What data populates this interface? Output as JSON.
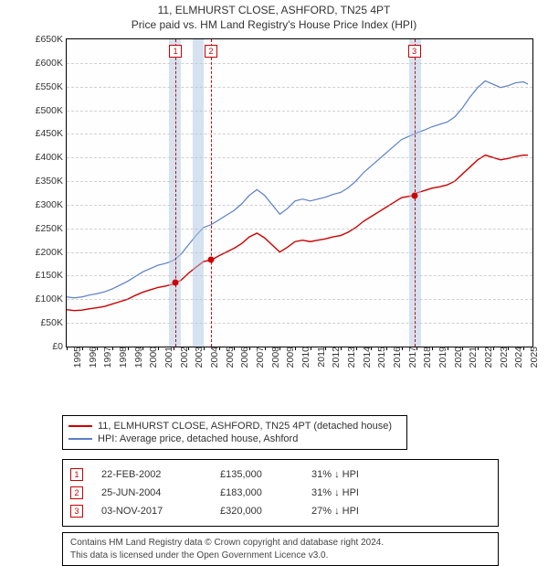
{
  "title": "11, ELMHURST CLOSE, ASHFORD, TN25 4PT",
  "subtitle": "Price paid vs. HM Land Registry's House Price Index (HPI)",
  "chart": {
    "type": "line",
    "background_color": "#fefefe",
    "grid_color": "#999999",
    "border_color": "#000000",
    "xlim": [
      1995,
      2025.6
    ],
    "ylim": [
      0,
      650000
    ],
    "ytick_step": 50000,
    "yticks": [
      "£0",
      "£50K",
      "£100K",
      "£150K",
      "£200K",
      "£250K",
      "£300K",
      "£350K",
      "£400K",
      "£450K",
      "£500K",
      "£550K",
      "£600K",
      "£650K"
    ],
    "xticks": [
      1995,
      1996,
      1997,
      1998,
      1999,
      2000,
      2001,
      2002,
      2003,
      2004,
      2005,
      2006,
      2007,
      2008,
      2009,
      2010,
      2011,
      2012,
      2013,
      2014,
      2015,
      2016,
      2017,
      2018,
      2019,
      2020,
      2021,
      2022,
      2023,
      2024,
      2025
    ],
    "shade_color": "rgba(173,198,224,0.5)",
    "shade_periods": [
      [
        2001.7,
        2002.5
      ],
      [
        2003.3,
        2004.0
      ],
      [
        2017.5,
        2018.3
      ]
    ],
    "dashed_color": "#cc0000",
    "series": [
      {
        "name": "11, ELMHURST CLOSE, ASHFORD, TN25 4PT (detached house)",
        "color": "#cc0000",
        "line_width": 1.4,
        "data": [
          [
            1995,
            78000
          ],
          [
            1995.5,
            76000
          ],
          [
            1996,
            77000
          ],
          [
            1996.5,
            80000
          ],
          [
            1997,
            82000
          ],
          [
            1997.5,
            85000
          ],
          [
            1998,
            90000
          ],
          [
            1998.5,
            95000
          ],
          [
            1999,
            100000
          ],
          [
            1999.5,
            108000
          ],
          [
            2000,
            115000
          ],
          [
            2000.5,
            120000
          ],
          [
            2001,
            125000
          ],
          [
            2001.5,
            128000
          ],
          [
            2002,
            132000
          ],
          [
            2002.15,
            135000
          ],
          [
            2002.5,
            140000
          ],
          [
            2003,
            155000
          ],
          [
            2003.5,
            168000
          ],
          [
            2004,
            180000
          ],
          [
            2004.5,
            183000
          ],
          [
            2005,
            192000
          ],
          [
            2005.5,
            200000
          ],
          [
            2006,
            208000
          ],
          [
            2006.5,
            218000
          ],
          [
            2007,
            232000
          ],
          [
            2007.5,
            240000
          ],
          [
            2008,
            230000
          ],
          [
            2008.5,
            215000
          ],
          [
            2009,
            200000
          ],
          [
            2009.5,
            210000
          ],
          [
            2010,
            222000
          ],
          [
            2010.5,
            225000
          ],
          [
            2011,
            222000
          ],
          [
            2011.5,
            225000
          ],
          [
            2012,
            228000
          ],
          [
            2012.5,
            232000
          ],
          [
            2013,
            235000
          ],
          [
            2013.5,
            242000
          ],
          [
            2014,
            252000
          ],
          [
            2014.5,
            265000
          ],
          [
            2015,
            275000
          ],
          [
            2015.5,
            285000
          ],
          [
            2016,
            295000
          ],
          [
            2016.5,
            305000
          ],
          [
            2017,
            315000
          ],
          [
            2017.85,
            320000
          ],
          [
            2018,
            325000
          ],
          [
            2018.5,
            330000
          ],
          [
            2019,
            335000
          ],
          [
            2019.5,
            338000
          ],
          [
            2020,
            342000
          ],
          [
            2020.5,
            350000
          ],
          [
            2021,
            365000
          ],
          [
            2021.5,
            380000
          ],
          [
            2022,
            395000
          ],
          [
            2022.5,
            405000
          ],
          [
            2023,
            400000
          ],
          [
            2023.5,
            395000
          ],
          [
            2024,
            398000
          ],
          [
            2024.5,
            402000
          ],
          [
            2025,
            405000
          ],
          [
            2025.3,
            405000
          ]
        ]
      },
      {
        "name": "HPI: Average price, detached house, Ashford",
        "color": "#5b7fc7",
        "line_width": 1.2,
        "data": [
          [
            1995,
            105000
          ],
          [
            1995.5,
            103000
          ],
          [
            1996,
            105000
          ],
          [
            1996.5,
            109000
          ],
          [
            1997,
            112000
          ],
          [
            1997.5,
            116000
          ],
          [
            1998,
            122000
          ],
          [
            1998.5,
            130000
          ],
          [
            1999,
            138000
          ],
          [
            1999.5,
            148000
          ],
          [
            2000,
            158000
          ],
          [
            2000.5,
            165000
          ],
          [
            2001,
            172000
          ],
          [
            2001.5,
            176000
          ],
          [
            2002,
            182000
          ],
          [
            2002.5,
            195000
          ],
          [
            2003,
            215000
          ],
          [
            2003.5,
            235000
          ],
          [
            2004,
            252000
          ],
          [
            2004.5,
            258000
          ],
          [
            2005,
            268000
          ],
          [
            2005.5,
            278000
          ],
          [
            2006,
            288000
          ],
          [
            2006.5,
            302000
          ],
          [
            2007,
            320000
          ],
          [
            2007.5,
            332000
          ],
          [
            2008,
            320000
          ],
          [
            2008.5,
            300000
          ],
          [
            2009,
            280000
          ],
          [
            2009.5,
            292000
          ],
          [
            2010,
            308000
          ],
          [
            2010.5,
            312000
          ],
          [
            2011,
            308000
          ],
          [
            2011.5,
            312000
          ],
          [
            2012,
            316000
          ],
          [
            2012.5,
            322000
          ],
          [
            2013,
            326000
          ],
          [
            2013.5,
            336000
          ],
          [
            2014,
            350000
          ],
          [
            2014.5,
            368000
          ],
          [
            2015,
            382000
          ],
          [
            2015.5,
            396000
          ],
          [
            2016,
            410000
          ],
          [
            2016.5,
            424000
          ],
          [
            2017,
            438000
          ],
          [
            2017.5,
            445000
          ],
          [
            2018,
            452000
          ],
          [
            2018.5,
            458000
          ],
          [
            2019,
            465000
          ],
          [
            2019.5,
            470000
          ],
          [
            2020,
            475000
          ],
          [
            2020.5,
            486000
          ],
          [
            2021,
            505000
          ],
          [
            2021.5,
            528000
          ],
          [
            2022,
            548000
          ],
          [
            2022.5,
            562000
          ],
          [
            2023,
            555000
          ],
          [
            2023.5,
            548000
          ],
          [
            2024,
            552000
          ],
          [
            2024.5,
            558000
          ],
          [
            2025,
            560000
          ],
          [
            2025.3,
            555000
          ]
        ]
      }
    ],
    "sale_points": [
      {
        "x": 2002.15,
        "y": 135000
      },
      {
        "x": 2004.48,
        "y": 183000
      },
      {
        "x": 2017.84,
        "y": 320000
      }
    ],
    "markers": [
      {
        "label": "1",
        "x": 2002.15
      },
      {
        "label": "2",
        "x": 2004.48
      },
      {
        "label": "3",
        "x": 2017.84
      }
    ]
  },
  "legend": {
    "items": [
      {
        "color": "#cc0000",
        "label": "11, ELMHURST CLOSE, ASHFORD, TN25 4PT (detached house)"
      },
      {
        "color": "#5b7fc7",
        "label": "HPI: Average price, detached house, Ashford"
      }
    ]
  },
  "events": [
    {
      "n": "1",
      "date": "22-FEB-2002",
      "price": "£135,000",
      "diff": "31% ↓ HPI"
    },
    {
      "n": "2",
      "date": "25-JUN-2004",
      "price": "£183,000",
      "diff": "31% ↓ HPI"
    },
    {
      "n": "3",
      "date": "03-NOV-2017",
      "price": "£320,000",
      "diff": "27% ↓ HPI"
    }
  ],
  "attribution": {
    "line1": "Contains HM Land Registry data © Crown copyright and database right 2024.",
    "line2": "This data is licensed under the Open Government Licence v3.0."
  }
}
